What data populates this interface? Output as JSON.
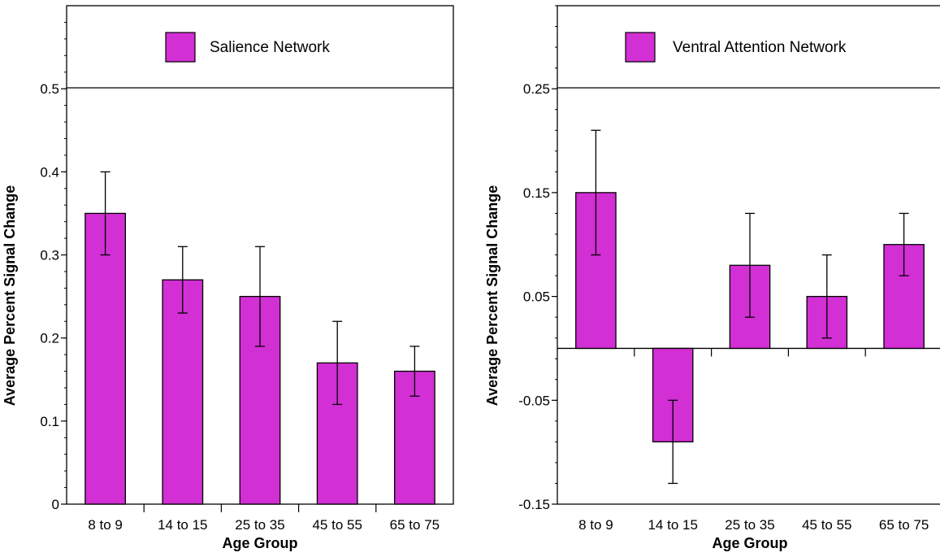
{
  "colors": {
    "bar": "#d22fd4",
    "axis": "#000000",
    "background": "#ffffff"
  },
  "chart_data": [
    {
      "type": "bar",
      "legend_label": "Salience Network",
      "legend_position": "top",
      "xlabel": "Age Group",
      "ylabel": "Average Percent Signal Change",
      "categories": [
        "8 to 9",
        "14 to 15",
        "25 to 35",
        "45 to 55",
        "65 to 75"
      ],
      "values": [
        0.35,
        0.27,
        0.25,
        0.17,
        0.16
      ],
      "error_low": [
        0.3,
        0.23,
        0.19,
        0.12,
        0.13
      ],
      "error_high": [
        0.4,
        0.31,
        0.31,
        0.22,
        0.19
      ],
      "ylim": [
        0,
        0.6
      ],
      "yticks": [
        0,
        0.1,
        0.2,
        0.3,
        0.4,
        0.5
      ],
      "ytick_labels": [
        "0",
        "0.1",
        "0.2",
        "0.3",
        "0.4",
        "0.5"
      ],
      "grid": false
    },
    {
      "type": "bar",
      "legend_label": "Ventral Attention Network",
      "legend_position": "top",
      "xlabel": "Age Group",
      "ylabel": "Average Percent Signal Change",
      "categories": [
        "8 to 9",
        "14 to 15",
        "25 to 35",
        "45 to 55",
        "65 to 75"
      ],
      "values": [
        0.15,
        -0.09,
        0.08,
        0.05,
        0.1
      ],
      "error_low": [
        0.09,
        -0.13,
        0.03,
        0.01,
        0.07
      ],
      "error_high": [
        0.21,
        -0.05,
        0.13,
        0.09,
        0.13
      ],
      "ylim": [
        -0.15,
        0.33
      ],
      "yticks": [
        -0.15,
        -0.05,
        0.05,
        0.15,
        0.25
      ],
      "ytick_labels": [
        "-0.15",
        "-0.05",
        "0.05",
        "0.15",
        "0.25"
      ],
      "grid": false
    }
  ]
}
